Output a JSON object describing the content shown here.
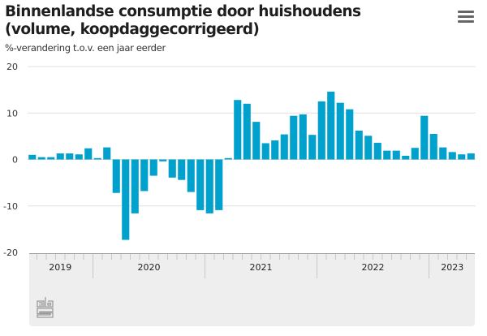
{
  "header": {
    "title": "Binnenlandse consumptie door huishoudens (volume, koopdaggecorrigeerd)",
    "subtitle": "%-verandering t.o.v. een jaar eerder",
    "menu_icon": "hamburger-menu-icon"
  },
  "logo": {
    "name": "cbs-logo"
  },
  "colors": {
    "bar": "#00a1cd",
    "grid": "#e0e0e0",
    "axis_panel": "#eeeeee"
  },
  "chart_data": {
    "type": "bar",
    "title": "Binnenlandse consumptie door huishoudens (volume, koopdaggecorrigeerd)",
    "ylabel": "%-verandering t.o.v. een jaar eerder",
    "xlabel": "",
    "ylim": [
      -20,
      20
    ],
    "yticks": [
      20,
      10,
      0,
      -10,
      -20
    ],
    "grid": true,
    "years": [
      {
        "label": "2019",
        "months": 7
      },
      {
        "label": "2020",
        "months": 12
      },
      {
        "label": "2021",
        "months": 12
      },
      {
        "label": "2022",
        "months": 12
      },
      {
        "label": "2023",
        "months": 5
      }
    ],
    "values": [
      1.0,
      0.5,
      0.5,
      1.3,
      1.3,
      1.1,
      2.4,
      0.3,
      2.6,
      -7.2,
      -17.3,
      -11.6,
      -6.8,
      -3.5,
      -0.4,
      -3.9,
      -4.4,
      -7.0,
      -10.9,
      -11.6,
      -10.9,
      0.3,
      12.8,
      12.0,
      8.1,
      3.5,
      4.1,
      5.4,
      9.4,
      9.7,
      5.3,
      12.5,
      14.6,
      12.2,
      10.8,
      6.2,
      5.1,
      3.6,
      1.9,
      1.9,
      0.8,
      2.5,
      9.4,
      5.5,
      2.6,
      1.6,
      1.1,
      1.3
    ]
  }
}
